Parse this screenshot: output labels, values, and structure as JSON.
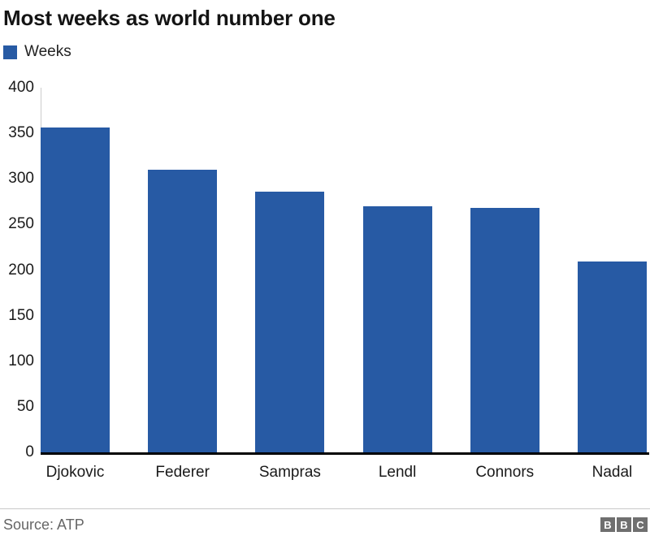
{
  "header": {
    "title": "Most weeks as world number one"
  },
  "legend": {
    "label": "Weeks",
    "color": "#275AA4"
  },
  "chart_data": {
    "type": "bar",
    "title": "Most weeks as world number one",
    "series_name": "Weeks",
    "categories": [
      "Djokovic",
      "Federer",
      "Sampras",
      "Lendl",
      "Connors",
      "Nadal"
    ],
    "values": [
      356,
      310,
      286,
      270,
      268,
      209
    ],
    "xlabel": "",
    "ylabel": "",
    "ylim": [
      0,
      400
    ],
    "yticks": [
      0,
      50,
      100,
      150,
      200,
      250,
      300,
      350,
      400
    ],
    "bar_color": "#275AA4",
    "grid": false,
    "legend_position": "top-left"
  },
  "footer": {
    "source": "Source: ATP",
    "logo_letters": [
      "B",
      "B",
      "C"
    ]
  }
}
